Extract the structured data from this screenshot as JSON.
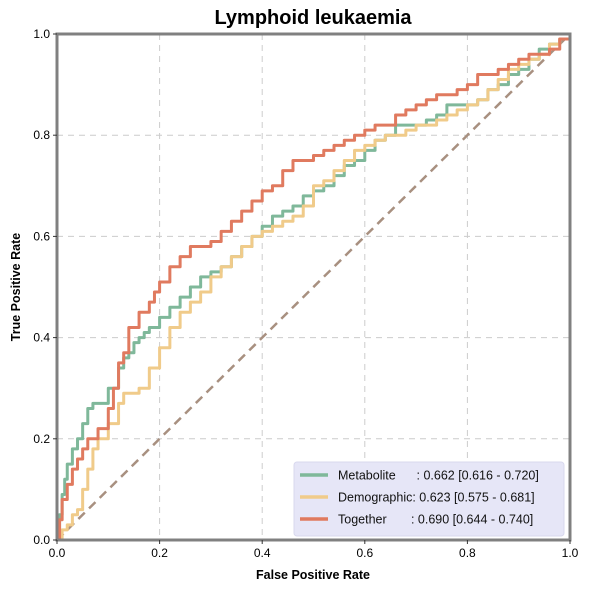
{
  "chart_data": {
    "type": "line",
    "title": "Lymphoid leukaemia",
    "xlabel": "False Positive Rate",
    "ylabel": "True Positive Rate",
    "xlim": [
      0.0,
      1.0
    ],
    "ylim": [
      0.0,
      1.0
    ],
    "xticks": [
      "0.0",
      "0.2",
      "0.4",
      "0.6",
      "0.8",
      "1.0"
    ],
    "yticks": [
      "0.0",
      "0.2",
      "0.4",
      "0.6",
      "0.8",
      "1.0"
    ],
    "grid": true,
    "legend_position": "lower-right",
    "chance_line": {
      "x": [
        0.0,
        1.0
      ],
      "y": [
        0.0,
        1.0
      ],
      "color": "#a89080",
      "style": "dashed"
    },
    "series": [
      {
        "name": "Metabolite",
        "legend_label": "Metabolite      : 0.662 [0.616 - 0.720]",
        "color": "#7fb89a",
        "x": [
          0.0,
          0.005,
          0.01,
          0.015,
          0.02,
          0.03,
          0.04,
          0.05,
          0.06,
          0.07,
          0.08,
          0.1,
          0.12,
          0.13,
          0.14,
          0.15,
          0.16,
          0.17,
          0.18,
          0.2,
          0.22,
          0.24,
          0.26,
          0.28,
          0.3,
          0.32,
          0.34,
          0.36,
          0.38,
          0.4,
          0.42,
          0.44,
          0.46,
          0.48,
          0.5,
          0.52,
          0.54,
          0.56,
          0.58,
          0.6,
          0.62,
          0.64,
          0.66,
          0.68,
          0.7,
          0.72,
          0.74,
          0.76,
          0.78,
          0.8,
          0.82,
          0.84,
          0.86,
          0.88,
          0.9,
          0.92,
          0.94,
          0.96,
          0.98,
          1.0
        ],
        "y": [
          0.0,
          0.05,
          0.09,
          0.12,
          0.15,
          0.18,
          0.2,
          0.23,
          0.26,
          0.27,
          0.27,
          0.3,
          0.34,
          0.36,
          0.37,
          0.39,
          0.4,
          0.41,
          0.42,
          0.44,
          0.46,
          0.48,
          0.5,
          0.52,
          0.53,
          0.54,
          0.56,
          0.58,
          0.6,
          0.62,
          0.64,
          0.65,
          0.66,
          0.68,
          0.69,
          0.7,
          0.72,
          0.74,
          0.75,
          0.77,
          0.79,
          0.8,
          0.82,
          0.82,
          0.82,
          0.83,
          0.84,
          0.86,
          0.86,
          0.86,
          0.87,
          0.89,
          0.9,
          0.92,
          0.93,
          0.95,
          0.97,
          0.98,
          0.99,
          1.0
        ]
      },
      {
        "name": "Demographic",
        "legend_label": "Demographic: 0.623 [0.575 - 0.681]",
        "color": "#f0cb8a",
        "x": [
          0.0,
          0.01,
          0.02,
          0.03,
          0.04,
          0.05,
          0.06,
          0.07,
          0.08,
          0.1,
          0.12,
          0.13,
          0.14,
          0.16,
          0.18,
          0.2,
          0.22,
          0.24,
          0.26,
          0.28,
          0.3,
          0.32,
          0.34,
          0.36,
          0.38,
          0.4,
          0.42,
          0.44,
          0.46,
          0.48,
          0.5,
          0.52,
          0.54,
          0.56,
          0.58,
          0.6,
          0.62,
          0.64,
          0.66,
          0.68,
          0.7,
          0.72,
          0.74,
          0.76,
          0.78,
          0.8,
          0.82,
          0.84,
          0.86,
          0.88,
          0.9,
          0.92,
          0.94,
          0.96,
          0.98,
          1.0
        ],
        "y": [
          0.0,
          0.02,
          0.03,
          0.05,
          0.06,
          0.1,
          0.14,
          0.18,
          0.2,
          0.23,
          0.27,
          0.29,
          0.29,
          0.3,
          0.34,
          0.38,
          0.42,
          0.45,
          0.47,
          0.49,
          0.52,
          0.54,
          0.56,
          0.58,
          0.6,
          0.61,
          0.62,
          0.63,
          0.64,
          0.66,
          0.7,
          0.71,
          0.73,
          0.75,
          0.77,
          0.78,
          0.79,
          0.8,
          0.8,
          0.81,
          0.82,
          0.82,
          0.83,
          0.84,
          0.85,
          0.86,
          0.87,
          0.89,
          0.91,
          0.93,
          0.94,
          0.95,
          0.96,
          0.98,
          0.99,
          1.0
        ]
      },
      {
        "name": "Together",
        "legend_label": "Together       : 0.690 [0.644 - 0.740]",
        "color": "#e07a5f",
        "x": [
          0.0,
          0.005,
          0.01,
          0.02,
          0.03,
          0.04,
          0.05,
          0.06,
          0.08,
          0.1,
          0.11,
          0.12,
          0.13,
          0.14,
          0.16,
          0.18,
          0.19,
          0.2,
          0.22,
          0.24,
          0.26,
          0.28,
          0.3,
          0.32,
          0.34,
          0.36,
          0.38,
          0.4,
          0.42,
          0.44,
          0.46,
          0.48,
          0.5,
          0.52,
          0.54,
          0.56,
          0.58,
          0.6,
          0.62,
          0.64,
          0.66,
          0.68,
          0.7,
          0.72,
          0.74,
          0.76,
          0.78,
          0.8,
          0.82,
          0.84,
          0.86,
          0.88,
          0.9,
          0.92,
          0.94,
          0.96,
          0.98,
          1.0
        ],
        "y": [
          0.0,
          0.04,
          0.08,
          0.11,
          0.14,
          0.16,
          0.18,
          0.2,
          0.22,
          0.26,
          0.3,
          0.35,
          0.37,
          0.42,
          0.45,
          0.47,
          0.49,
          0.51,
          0.54,
          0.56,
          0.58,
          0.58,
          0.59,
          0.61,
          0.63,
          0.65,
          0.67,
          0.69,
          0.7,
          0.73,
          0.75,
          0.75,
          0.76,
          0.77,
          0.78,
          0.79,
          0.8,
          0.81,
          0.82,
          0.82,
          0.84,
          0.85,
          0.86,
          0.87,
          0.88,
          0.88,
          0.89,
          0.9,
          0.92,
          0.92,
          0.93,
          0.94,
          0.95,
          0.96,
          0.96,
          0.97,
          0.99,
          1.0
        ]
      }
    ]
  }
}
